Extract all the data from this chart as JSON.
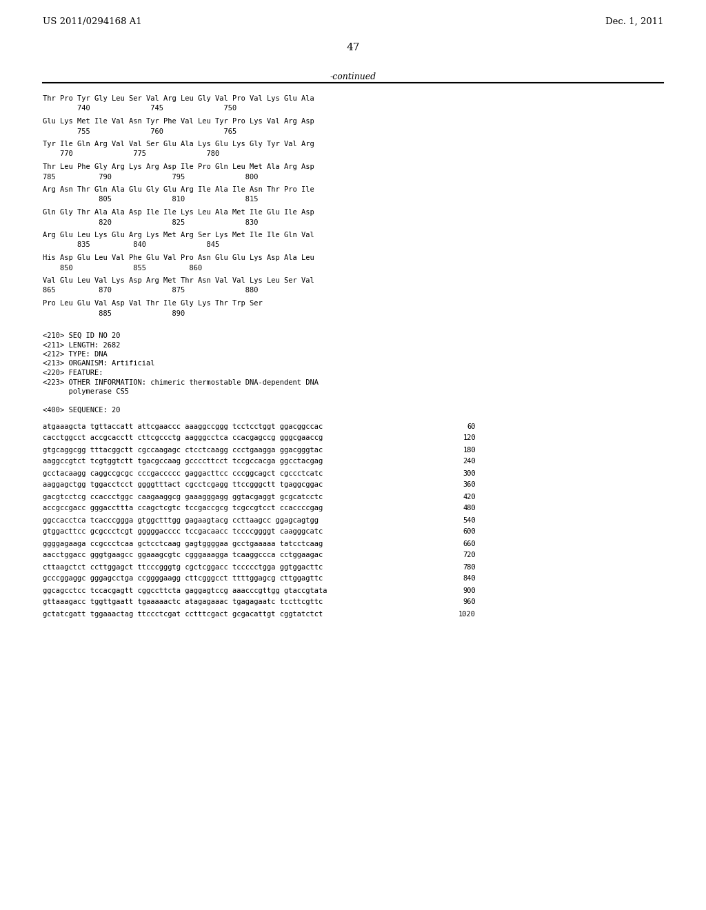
{
  "header_left": "US 2011/0294168 A1",
  "header_right": "Dec. 1, 2011",
  "page_number": "47",
  "continued_label": "-continued",
  "background_color": "#ffffff",
  "text_color": "#000000",
  "font_size": 9.5,
  "mono_font_size": 7.5,
  "protein_lines": [
    [
      "Thr Pro Tyr Gly Leu Ser Val Arg Leu Gly Val Pro Val Lys Glu Ala",
      "        740              745              750"
    ],
    [
      "Glu Lys Met Ile Val Asn Tyr Phe Val Leu Tyr Pro Lys Val Arg Asp",
      "        755              760              765"
    ],
    [
      "Tyr Ile Gln Arg Val Val Ser Glu Ala Lys Glu Lys Gly Tyr Val Arg",
      "    770              775              780"
    ],
    [
      "Thr Leu Phe Gly Arg Lys Arg Asp Ile Pro Gln Leu Met Ala Arg Asp",
      "785          790              795              800"
    ],
    [
      "Arg Asn Thr Gln Ala Glu Gly Glu Arg Ile Ala Ile Asn Thr Pro Ile",
      "             805              810              815"
    ],
    [
      "Gln Gly Thr Ala Ala Asp Ile Ile Lys Leu Ala Met Ile Glu Ile Asp",
      "             820              825              830"
    ],
    [
      "Arg Glu Leu Lys Glu Arg Lys Met Arg Ser Lys Met Ile Ile Gln Val",
      "        835          840              845"
    ],
    [
      "His Asp Glu Leu Val Phe Glu Val Pro Asn Glu Glu Lys Asp Ala Leu",
      "    850              855          860"
    ],
    [
      "Val Glu Leu Val Lys Asp Arg Met Thr Asn Val Val Lys Leu Ser Val",
      "865          870              875              880"
    ],
    [
      "Pro Leu Glu Val Asp Val Thr Ile Gly Lys Thr Trp Ser",
      "             885              890"
    ]
  ],
  "seq_info": [
    "<210> SEQ ID NO 20",
    "<211> LENGTH: 2682",
    "<212> TYPE: DNA",
    "<213> ORGANISM: Artificial",
    "<220> FEATURE:",
    "<223> OTHER INFORMATION: chimeric thermostable DNA-dependent DNA",
    "      polymerase CS5",
    "",
    "<400> SEQUENCE: 20"
  ],
  "dna_lines": [
    [
      "atgaaagcta tgttaccatt attcgaaccc aaaggccggg tcctcctggt ggacggccac",
      "60"
    ],
    [
      "cacctggcct accgcacctt cttcgccctg aagggcctca ccacgagccg gggcgaaccg",
      "120"
    ],
    [
      "gtgcaggcgg tttacggctt cgccaagagc ctcctcaagg ccctgaagga ggacgggtac",
      "180"
    ],
    [
      "aaggccgtct tcgtggtctt tgacgccaag gccccttcct tccgccacga ggcctacgag",
      "240"
    ],
    [
      "gcctacaagg caggccgcgc cccgaccccc gaggacttcc cccggcagct cgccctcatc",
      "300"
    ],
    [
      "aaggagctgg tggacctcct ggggtttact cgcctcgagg ttccgggctt tgaggcggac",
      "360"
    ],
    [
      "gacgtcctcg ccaccctggc caagaaggcg gaaagggagg ggtacgaggt gcgcatcctc",
      "420"
    ],
    [
      "accgccgacc gggaccttta ccagctcgtc tccgaccgcg tcgccgtcct ccaccccgag",
      "480"
    ],
    [
      "ggccacctca tcacccggga gtggctttgg gagaagtacg ccttaagcc ggagcagtgg",
      "540"
    ],
    [
      "gtggacttcc gcgccctcgt gggggacccc tccgacaacc tccccggggt caagggcatc",
      "600"
    ],
    [
      "ggggagaaga ccgccctcaa gctcctcaag gagtggggaa gcctgaaaaa tatcctcaag",
      "660"
    ],
    [
      "aacctggacc gggtgaagcc ggaaagcgtc cgggaaagga tcaaggccca cctggaagac",
      "720"
    ],
    [
      "cttaagctct ccttggagct ttcccgggtg cgctcggacc tccccctgga ggtggacttc",
      "780"
    ],
    [
      "gcccggaggc gggagcctga ccggggaagg cttcgggcct ttttggagcg cttggagttc",
      "840"
    ],
    [
      "ggcagcctcc tccacgagtt cggccttcta gaggagtccg aaacccgttgg gtaccgtata",
      "900"
    ],
    [
      "gttaaagacc tggttgaatt tgaaaaactc atagagaaac tgagagaatc tccttcgttc",
      "960"
    ],
    [
      "gctatcgatt tggaaactag ttccctcgat cctttcgact gcgacattgt cggtatctct",
      "1020"
    ]
  ]
}
